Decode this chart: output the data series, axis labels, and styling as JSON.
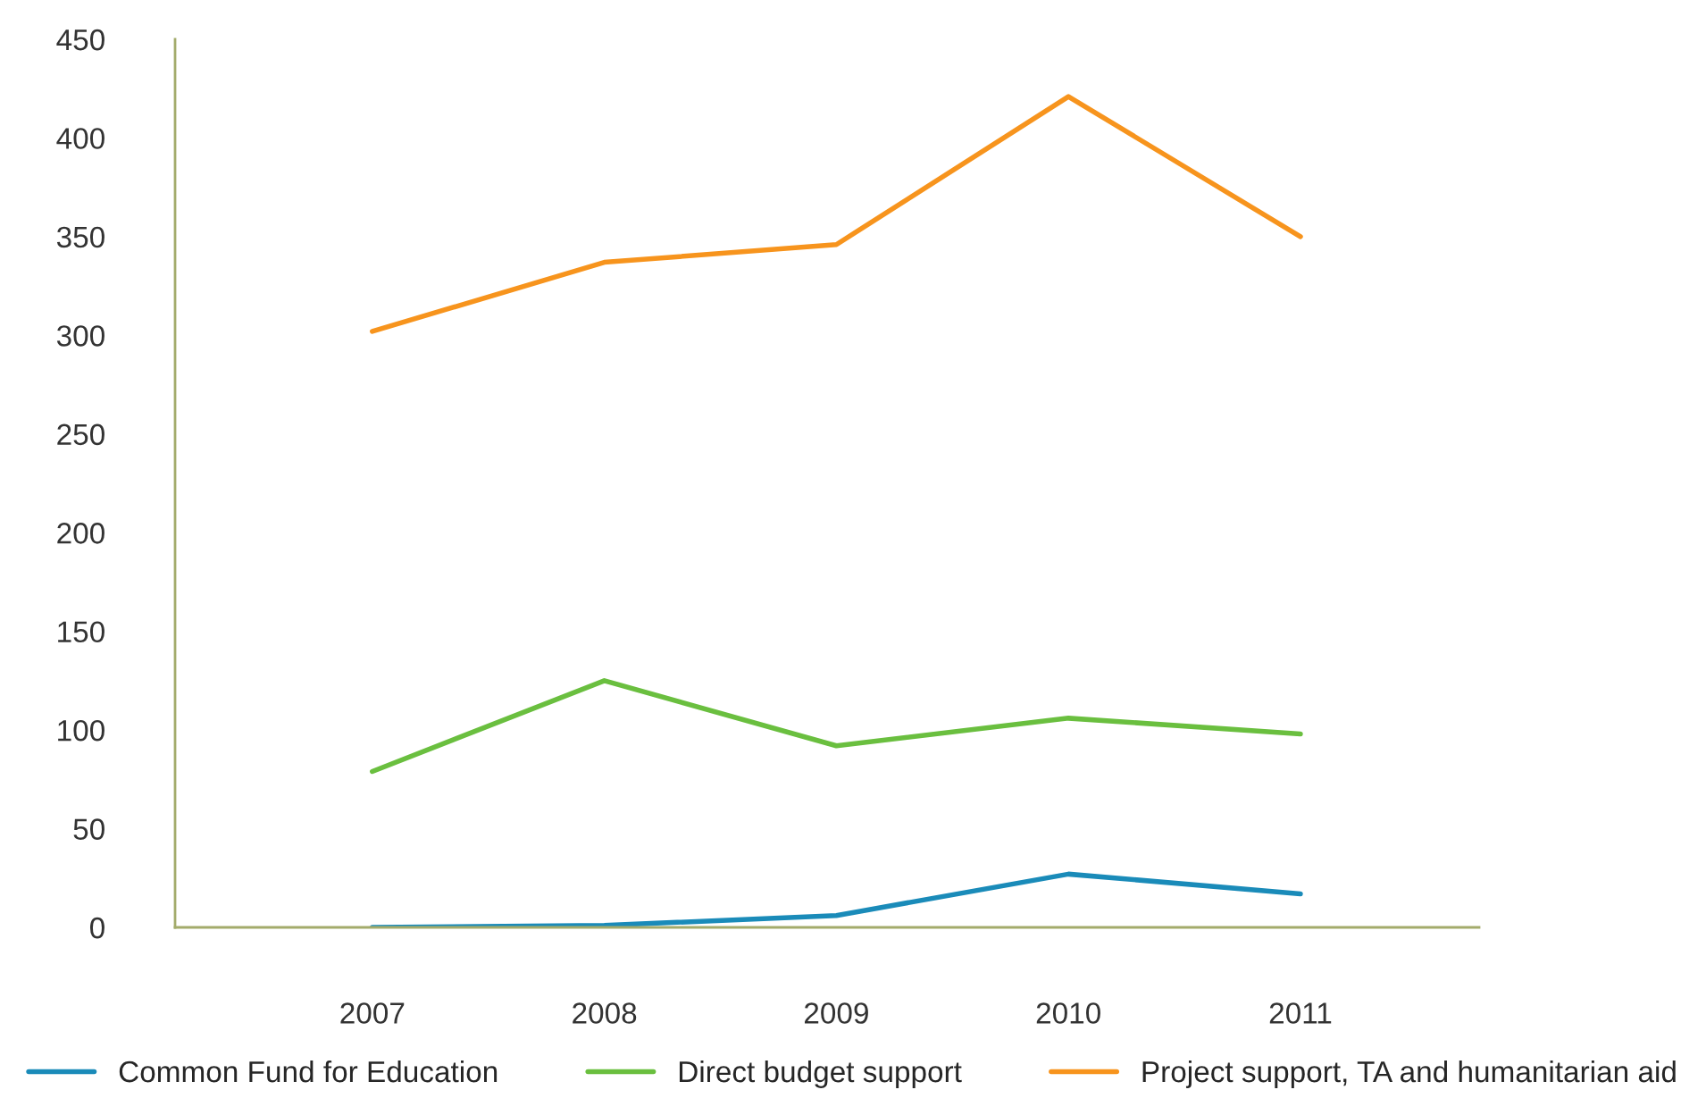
{
  "chart_data": {
    "type": "line",
    "categories": [
      "2007",
      "2008",
      "2009",
      "2010",
      "2011"
    ],
    "series": [
      {
        "name": "Common Fund for Education",
        "color": "#1a8bb9",
        "values": [
          0,
          1,
          6,
          27,
          17
        ]
      },
      {
        "name": "Direct budget support",
        "color": "#6abf3f",
        "values": [
          79,
          125,
          92,
          106,
          98
        ]
      },
      {
        "name": "Project support, TA and humanitarian aid",
        "color": "#f7941d",
        "values": [
          302,
          337,
          346,
          421,
          350
        ]
      }
    ],
    "ylim": [
      0,
      450
    ],
    "yticks": [
      0,
      50,
      100,
      150,
      200,
      250,
      300,
      350,
      400,
      450
    ],
    "grid": false,
    "legend": "bottom",
    "marker": "none",
    "line_style": "solid"
  }
}
